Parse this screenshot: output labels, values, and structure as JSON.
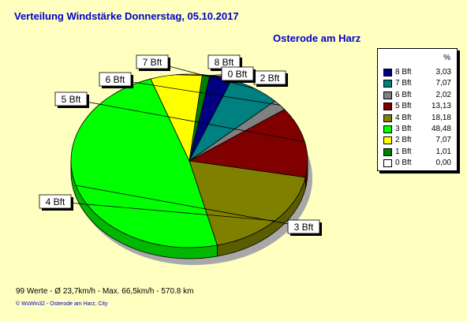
{
  "chart_data": {
    "type": "pie",
    "title": "Verteilung Windstärke  Donnerstag, 05.10.2017",
    "subtitle": "Osterode am Harz",
    "unit_label": "%",
    "slices": [
      {
        "label": "8 Bft",
        "value": 3.03,
        "value_text": "3,03",
        "color": "#000080"
      },
      {
        "label": "7 Bft",
        "value": 7.07,
        "value_text": "7,07",
        "color": "#008080"
      },
      {
        "label": "6 Bft",
        "value": 2.02,
        "value_text": "2,02",
        "color": "#808080"
      },
      {
        "label": "5 Bft",
        "value": 13.13,
        "value_text": "13,13",
        "color": "#800000"
      },
      {
        "label": "4 Bft",
        "value": 18.18,
        "value_text": "18,18",
        "color": "#808000"
      },
      {
        "label": "3 Bft",
        "value": 48.48,
        "value_text": "48,48",
        "color": "#00ff00"
      },
      {
        "label": "2 Bft",
        "value": 7.07,
        "value_text": "7,07",
        "color": "#ffff00"
      },
      {
        "label": "1 Bft",
        "value": 1.01,
        "value_text": "1,01",
        "color": "#008000"
      },
      {
        "label": "0 Bft",
        "value": 0.0,
        "value_text": "0,00",
        "color": "#ffffff"
      }
    ]
  },
  "footer": {
    "stats": "99 Werte   -   Ø 23,7km/h   -  Max. 66,5km/h   -   570.8 km",
    "credit": "© WsWin32  -  Osterode am Harz, City"
  }
}
